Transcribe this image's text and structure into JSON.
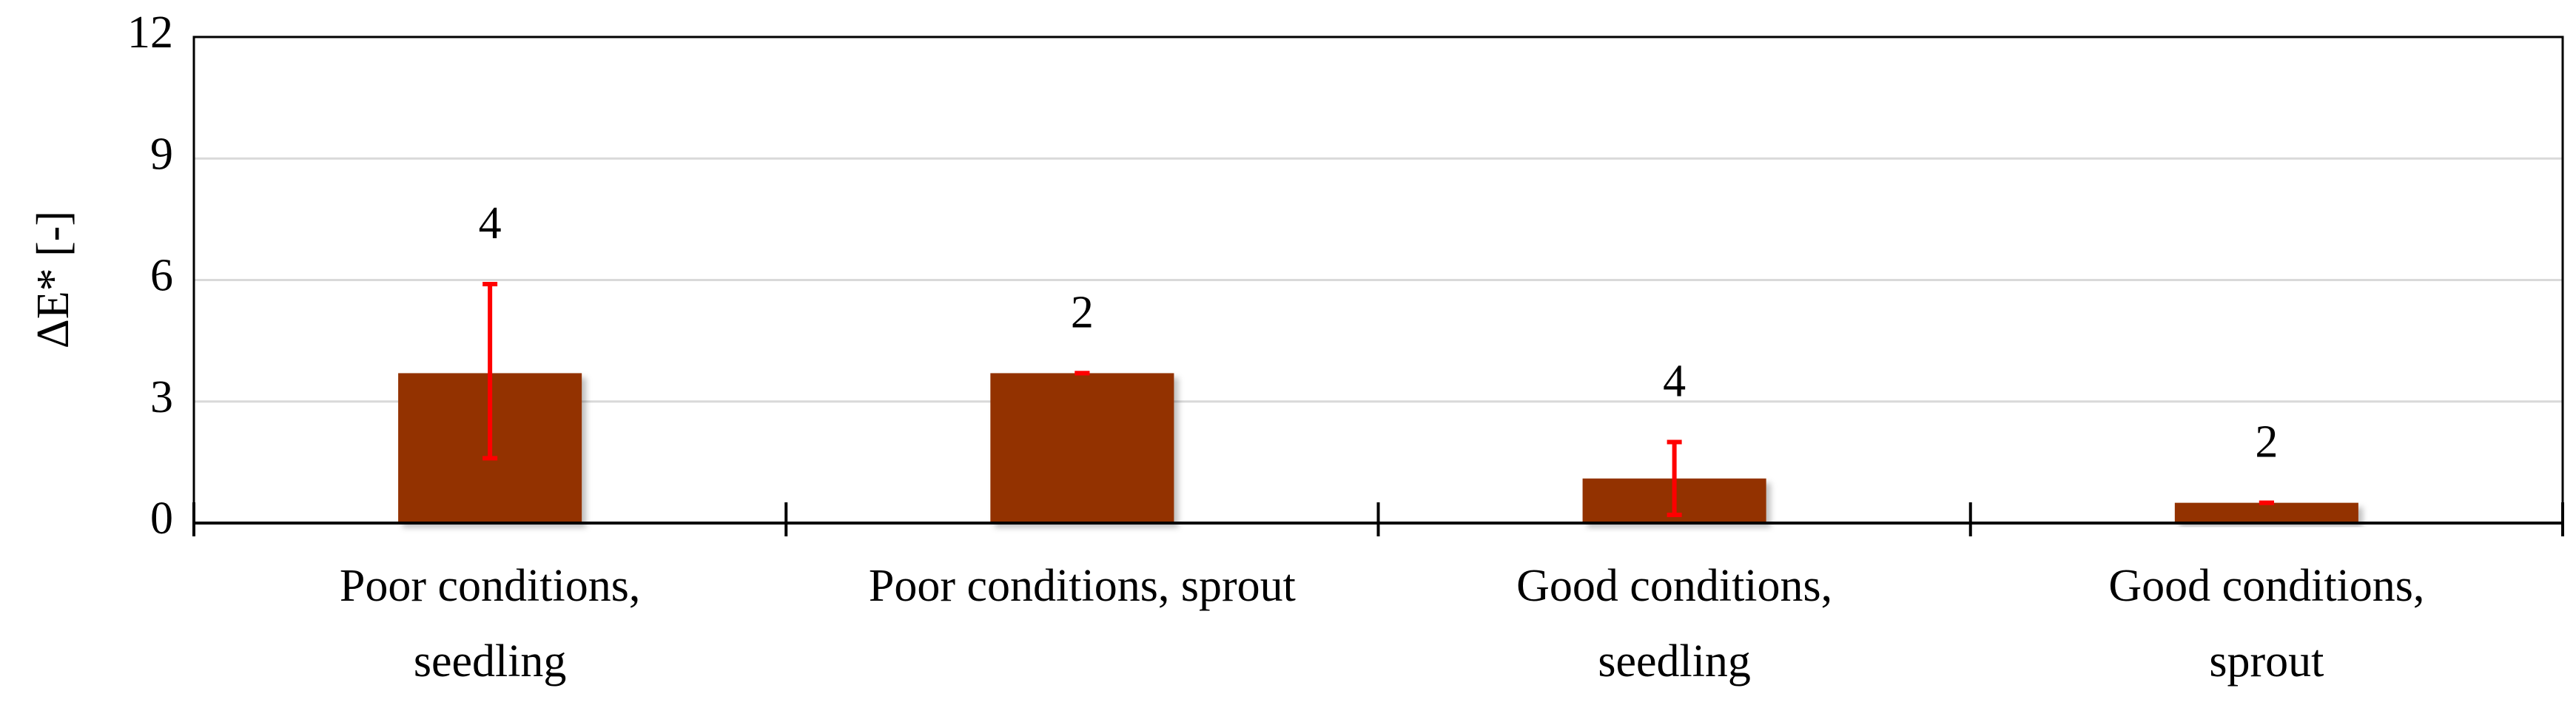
{
  "chart_data": {
    "type": "bar",
    "categories": [
      [
        "Poor conditions,",
        "seedling"
      ],
      [
        "Poor conditions, sprout"
      ],
      [
        "Good conditions,",
        "seedling"
      ],
      [
        "Good conditions,",
        "sprout"
      ]
    ],
    "values": [
      3.7,
      3.7,
      1.1,
      0.5
    ],
    "error_low": [
      1.6,
      3.7,
      0.2,
      0.5
    ],
    "error_high": [
      5.9,
      3.7,
      2.0,
      0.5
    ],
    "data_labels": [
      "4",
      "2",
      "4",
      "2"
    ],
    "ylabel": "ΔE* [-]",
    "ylim": [
      0,
      12
    ],
    "yticks": [
      "0",
      "3",
      "6",
      "9",
      "12"
    ],
    "grid": true,
    "colors": {
      "bar": "#933302",
      "error": "#ff0000",
      "grid": "#d9d9d9",
      "axis": "#000000"
    }
  }
}
